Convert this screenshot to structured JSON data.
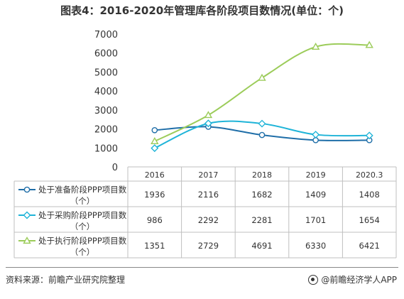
{
  "title": "图表4：2016-2020年管理库各阶段项目数情况(单位：个)",
  "chart_data": {
    "type": "line",
    "categories": [
      "2016",
      "2017",
      "2018",
      "2019",
      "2020.3"
    ],
    "ylim": [
      0,
      7000
    ],
    "yticks": [
      0,
      1000,
      2000,
      3000,
      4000,
      5000,
      6000,
      7000
    ],
    "grid": false,
    "legend_placement": "table-left",
    "series": [
      {
        "name": "处于准备阶段PPP项目数（个）",
        "line1": "处于准备阶段PPP项目数",
        "line2": "（个）",
        "color": "#1f6ea8",
        "marker": "circle",
        "values": [
          1936,
          2116,
          1682,
          1409,
          1408
        ]
      },
      {
        "name": "处于采购阶段PPP项目数（个）",
        "line1": "处于采购阶段PPP项目数",
        "line2": "（个）",
        "color": "#1fb4d8",
        "marker": "diamond",
        "values": [
          986,
          2292,
          2281,
          1701,
          1654
        ]
      },
      {
        "name": "处于执行阶段PPP项目数（个）",
        "line1": "处于执行阶段PPP项目数",
        "line2": "（个）",
        "color": "#9ccc5a",
        "marker": "triangle",
        "values": [
          1351,
          2729,
          4691,
          6330,
          6421
        ]
      }
    ]
  },
  "footer": {
    "source": "资料来源：前瞻产业研究院整理",
    "brand": "@前瞻经济学人APP"
  }
}
